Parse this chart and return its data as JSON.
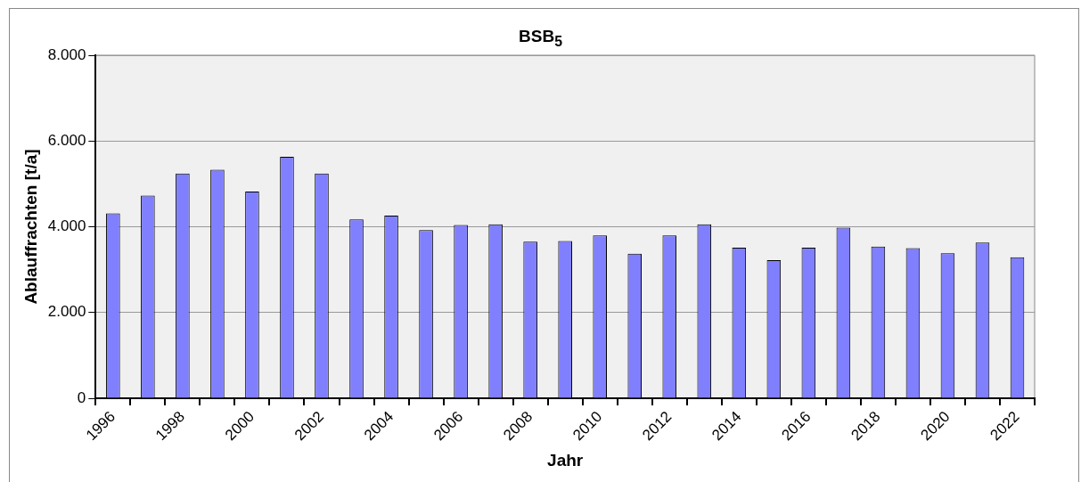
{
  "chart_data": {
    "type": "bar",
    "title": "BSB$_{5}$",
    "xlabel": "Jahr",
    "ylabel": "Ablauffrachten [t/a]",
    "categories": [
      "1996",
      null,
      "1998",
      null,
      "2000",
      null,
      "2002",
      null,
      "2004",
      null,
      "2006",
      null,
      "2008",
      null,
      "2010",
      null,
      "2012",
      null,
      "2014",
      null,
      "2016",
      null,
      "2018",
      null,
      "2020",
      null,
      "2022"
    ],
    "values": [
      4310,
      4730,
      5240,
      5330,
      4820,
      5630,
      5240,
      4170,
      4260,
      3920,
      4040,
      4060,
      3650,
      3670,
      3800,
      3370,
      3800,
      4060,
      3510,
      3220,
      3510,
      3980,
      3540,
      3500,
      3380,
      3630,
      3290
    ],
    "color": "#8080ff",
    "ylim": [
      0,
      8000
    ],
    "yticks": [
      0,
      {
        "value": 2000,
        "label": "2.000"
      },
      {
        "value": 4000,
        "label": "4.000"
      },
      {
        "value": 6000,
        "label": "6.000"
      },
      {
        "value": 8000,
        "label": "8.000"
      }
    ],
    "grid": "y",
    "legend": false
  }
}
